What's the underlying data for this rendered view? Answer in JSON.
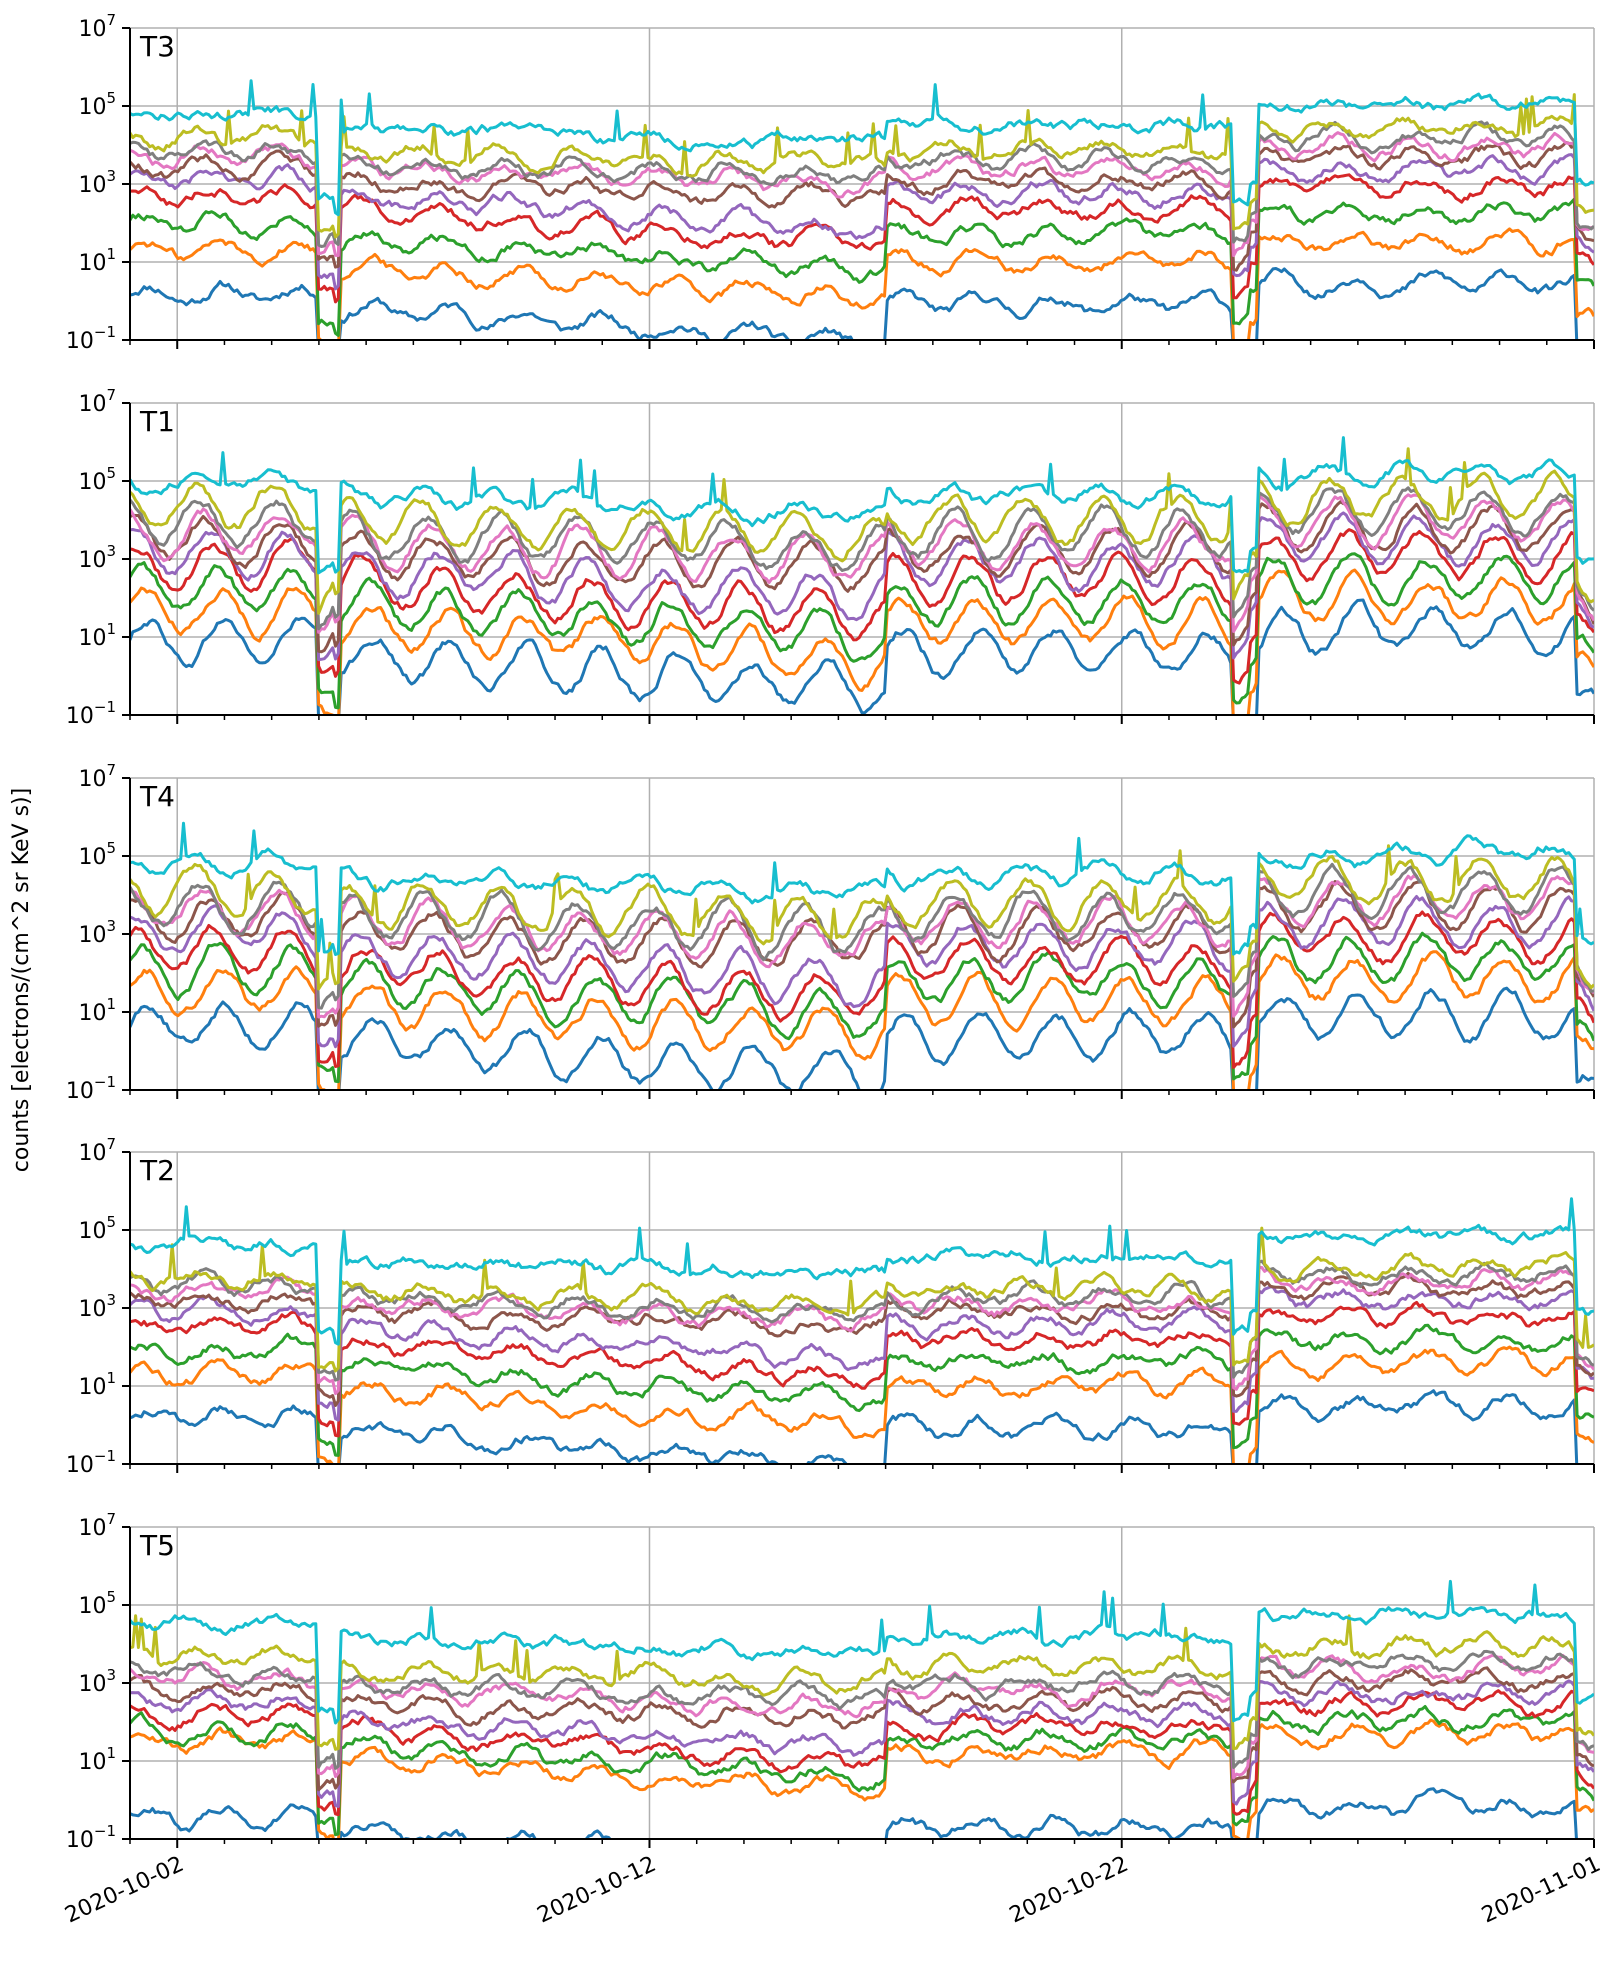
{
  "chart_data": {
    "type": "line",
    "ylabel": "counts [electrons/(cm^2 sr KeV s)]",
    "yscale": "log",
    "ylim_exp": [
      -1,
      7
    ],
    "ytick_exponents": [
      "-1",
      "1",
      "3",
      "5",
      "7"
    ],
    "xlim": [
      "2020-10-01",
      "2020-11-01"
    ],
    "xtick_labels": [
      "2020-10-02",
      "2020-10-12",
      "2020-10-22",
      "2020-11-01"
    ],
    "xtick_dates": [
      "2020-10-02",
      "2020-10-12",
      "2020-10-22",
      "2020-11-01"
    ],
    "grid": true,
    "colors": [
      "#1f77b4",
      "#ff7f0e",
      "#2ca02c",
      "#d62728",
      "#9467bd",
      "#8c564b",
      "#e377c2",
      "#7f7f7f",
      "#bcbd22",
      "#17becf"
    ],
    "panel_titles": [
      "T3",
      "T1",
      "T4",
      "T2",
      "T5"
    ],
    "baseline_levels_log10": [
      [
        0.2,
        1.3,
        2.0,
        2.7,
        3.1,
        3.4,
        3.7,
        3.9,
        4.2,
        4.8
      ],
      [
        0.9,
        1.7,
        2.2,
        2.8,
        3.2,
        3.5,
        3.7,
        4.0,
        4.3,
        4.9
      ],
      [
        0.7,
        1.6,
        2.1,
        2.6,
        3.0,
        3.4,
        3.6,
        3.8,
        4.1,
        4.8
      ],
      [
        0.2,
        1.3,
        1.9,
        2.5,
        2.9,
        3.2,
        3.4,
        3.6,
        3.8,
        4.6
      ],
      [
        -0.4,
        1.5,
        1.8,
        2.2,
        2.5,
        2.8,
        3.1,
        3.3,
        3.7,
        4.5
      ]
    ],
    "series_shape": "dips near 2020-10-05, 2020-10-24, 2020-10-31; elevated after 2020-10-24"
  }
}
